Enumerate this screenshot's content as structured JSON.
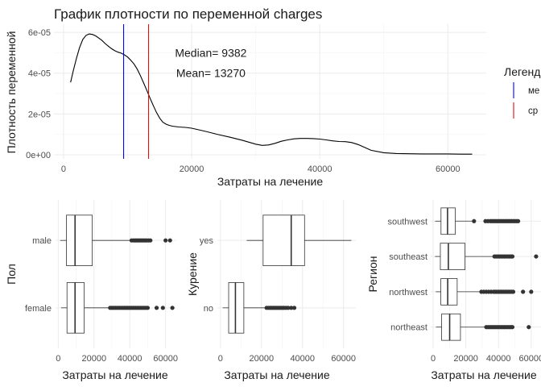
{
  "chart_data": [
    {
      "type": "line",
      "title": "График плотности по переменной charges",
      "xlabel": "Затраты на лечение",
      "ylabel": "Плотность переменной",
      "xlim": [
        -1500,
        66000
      ],
      "ylim": [
        -2e-06,
        6.4e-05
      ],
      "x_ticks": [
        0,
        20000,
        40000,
        60000
      ],
      "x_tick_labels": [
        "0",
        "20000",
        "40000",
        "60000"
      ],
      "y_ticks": [
        0,
        2e-05,
        4e-05,
        6e-05
      ],
      "y_tick_labels": [
        "0e+00",
        "2e-05",
        "4e-05",
        "6e-05"
      ],
      "grid": true,
      "series": [
        {
          "color": "#000000",
          "x": [
            1100,
            1500,
            2000,
            2500,
            3000,
            3500,
            4000,
            4500,
            5000,
            5500,
            6000,
            6500,
            7000,
            7500,
            8000,
            8500,
            9000,
            9500,
            10000,
            10500,
            11000,
            11500,
            12000,
            12500,
            13000,
            13500,
            14000,
            14500,
            15000,
            15500,
            16000,
            16500,
            17000,
            18000,
            19000,
            20000,
            22000,
            24000,
            26000,
            28000,
            30000,
            31000,
            32000,
            33000,
            34000,
            35000,
            36000,
            37000,
            38000,
            39000,
            40000,
            41000,
            42000,
            43000,
            44000,
            45000,
            46000,
            47000,
            48000,
            50000,
            52000,
            54000,
            56000,
            58000,
            60000,
            62000,
            63800
          ],
          "y": [
            3.55e-05,
            4.1e-05,
            4.7e-05,
            5.25e-05,
            5.65e-05,
            5.85e-05,
            5.92e-05,
            5.9e-05,
            5.83e-05,
            5.72e-05,
            5.6e-05,
            5.45e-05,
            5.32e-05,
            5.2e-05,
            5.1e-05,
            5.03e-05,
            4.98e-05,
            4.9e-05,
            4.79e-05,
            4.63e-05,
            4.45e-05,
            4.2e-05,
            3.88e-05,
            3.52e-05,
            3.15e-05,
            2.78e-05,
            2.42e-05,
            2.08e-05,
            1.8e-05,
            1.6e-05,
            1.5e-05,
            1.44e-05,
            1.4e-05,
            1.36e-05,
            1.34e-05,
            1.3e-05,
            1.16e-05,
            1e-05,
            8.6e-06,
            7e-06,
            5.2e-06,
            4.6e-06,
            4.8e-06,
            5.6e-06,
            6.6e-06,
            7.3e-06,
            7.8e-06,
            8e-06,
            8e-06,
            7.9e-06,
            7.7e-06,
            7.3e-06,
            6.8e-06,
            6.5e-06,
            6.4e-06,
            6e-06,
            5e-06,
            3.6e-06,
            2.2e-06,
            1e-06,
            6e-07,
            5e-07,
            4e-07,
            4e-07,
            4e-07,
            3e-07,
            3e-07
          ]
        }
      ],
      "vlines": [
        {
          "name": "медиана",
          "x": 9382,
          "color": "#0000ff"
        },
        {
          "name": "среднее",
          "x": 13270,
          "color": "#dd1111"
        }
      ],
      "annotations": [
        {
          "text": "Median= 9382",
          "x": 23000,
          "y": 5e-05
        },
        {
          "text": "Mean= 13270",
          "x": 23000,
          "y": 4e-05
        }
      ],
      "legend": {
        "title": "Легенд",
        "placement": "right",
        "entries": [
          "ме",
          "ср"
        ]
      }
    },
    {
      "type": "boxplot",
      "xlabel": "Затраты на лечение",
      "ylabel": "Пол",
      "xlim": [
        -1500,
        66000
      ],
      "x_ticks": [
        0,
        20000,
        40000,
        60000
      ],
      "x_tick_labels": [
        "0",
        "20000",
        "40000",
        "60000"
      ],
      "categories": [
        "female",
        "male"
      ],
      "grid": true,
      "boxes": [
        {
          "category": "female",
          "q1": 4900,
          "median": 9400,
          "q3": 14500,
          "whisker_low": 1600,
          "whisker_high": 28500,
          "outliers": [
            29000,
            30000,
            31000,
            32000,
            33000,
            34000,
            35000,
            36000,
            37000,
            38000,
            39000,
            40000,
            41000,
            42000,
            43000,
            44000,
            45000,
            46000,
            47000,
            48000,
            49000,
            50000,
            55000,
            58500,
            63800
          ]
        },
        {
          "category": "male",
          "q1": 4600,
          "median": 9400,
          "q3": 19000,
          "whisker_low": 1100,
          "whisker_high": 40800,
          "outliers": [
            41000,
            42000,
            42800,
            43500,
            44200,
            45000,
            45700,
            46500,
            47200,
            48000,
            48800,
            49500,
            50500,
            51500,
            60000,
            62500
          ]
        }
      ]
    },
    {
      "type": "boxplot",
      "xlabel": "Затраты на лечение",
      "ylabel": "Курение",
      "xlim": [
        -1500,
        66000
      ],
      "x_ticks": [
        0,
        20000,
        40000,
        60000
      ],
      "x_tick_labels": [
        "0",
        "20000",
        "40000",
        "60000"
      ],
      "categories": [
        "no",
        "yes"
      ],
      "grid": true,
      "boxes": [
        {
          "category": "no",
          "q1": 4000,
          "median": 7300,
          "q3": 11400,
          "whisker_low": 1100,
          "whisker_high": 22000,
          "outliers": [
            22500,
            23500,
            24300,
            25000,
            25700,
            26500,
            27200,
            28000,
            28800,
            29500,
            30300,
            31000,
            32000,
            33000,
            34500,
            36000
          ]
        },
        {
          "category": "yes",
          "q1": 20800,
          "median": 34500,
          "q3": 41000,
          "whisker_low": 12800,
          "whisker_high": 63800,
          "outliers": []
        }
      ]
    },
    {
      "type": "boxplot",
      "xlabel": "Затраты на лечение",
      "ylabel": "Регион",
      "xlim": [
        -1500,
        66000
      ],
      "x_ticks": [
        0,
        20000,
        40000,
        60000
      ],
      "x_tick_labels": [
        "0",
        "20000",
        "40000",
        "60000"
      ],
      "categories": [
        "northeast",
        "northwest",
        "southeast",
        "southwest"
      ],
      "grid": true,
      "boxes": [
        {
          "category": "northeast",
          "q1": 5200,
          "median": 10100,
          "q3": 16700,
          "whisker_low": 1700,
          "whisker_high": 32000,
          "outliers": [
            32500,
            33500,
            34500,
            35500,
            36500,
            37500,
            38500,
            39500,
            40500,
            41500,
            42500,
            43500,
            44500,
            45500,
            46500,
            47500,
            48500,
            58500
          ]
        },
        {
          "category": "northwest",
          "q1": 4700,
          "median": 8900,
          "q3": 14700,
          "whisker_low": 1600,
          "whisker_high": 29000,
          "outliers": [
            29500,
            31000,
            32500,
            34000,
            35500,
            37000,
            38000,
            39000,
            40000,
            41000,
            42000,
            43000,
            44000,
            45000,
            46000,
            47000,
            48000,
            49000,
            55000,
            60000
          ]
        },
        {
          "category": "southeast",
          "q1": 4400,
          "median": 9300,
          "q3": 19500,
          "whisker_low": 1100,
          "whisker_high": 37000,
          "outliers": [
            37500,
            38500,
            39500,
            40500,
            41500,
            42500,
            43500,
            44500,
            45500,
            46500,
            47500,
            48500,
            63000
          ]
        },
        {
          "category": "southwest",
          "q1": 4800,
          "median": 8800,
          "q3": 13500,
          "whisker_low": 1200,
          "whisker_high": 24000,
          "outliers": [
            25000,
            32000,
            33500,
            35000,
            36000,
            37000,
            38000,
            39000,
            40000,
            41000,
            42000,
            43000,
            44000,
            45000,
            46000,
            47000,
            48000,
            49000,
            50000,
            51000,
            52000
          ]
        }
      ]
    }
  ]
}
